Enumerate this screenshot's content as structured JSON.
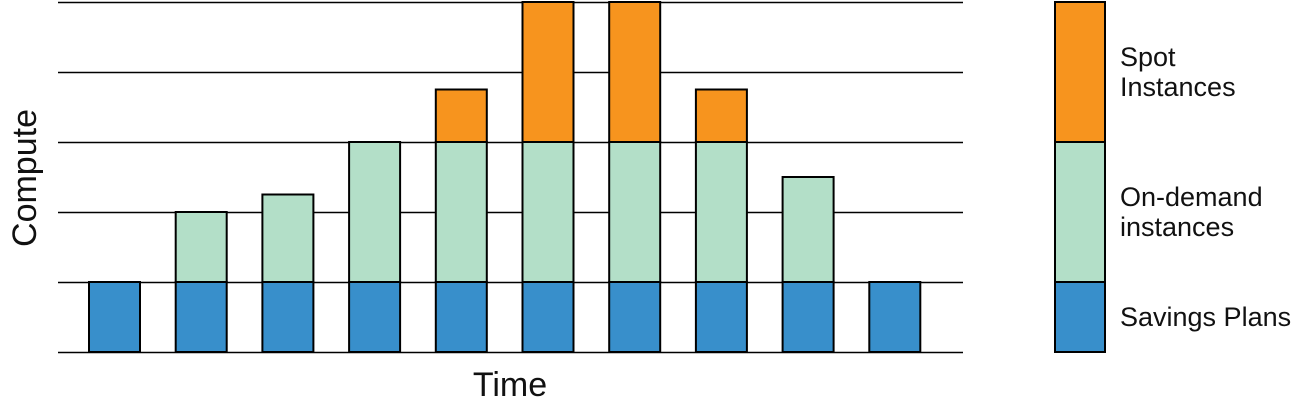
{
  "chart_data": {
    "type": "bar",
    "stacked": true,
    "categories": [
      "",
      "",
      "",
      "",
      "",
      "",
      "",
      "",
      "",
      ""
    ],
    "series": [
      {
        "name": "Savings Plans",
        "color": "#388fcb",
        "values": [
          1,
          1,
          1,
          1,
          1,
          1,
          1,
          1,
          1,
          1
        ]
      },
      {
        "name": "On-demand instances",
        "color": "#b3dfc8",
        "values": [
          0,
          1,
          1.25,
          2,
          2,
          2,
          2,
          2,
          1.5,
          0
        ]
      },
      {
        "name": "Spot Instances",
        "color": "#f7941e",
        "values": [
          0,
          0,
          0,
          0,
          0.75,
          2,
          2,
          0.75,
          0,
          0
        ]
      }
    ],
    "xlabel": "Time",
    "ylabel": "Compute",
    "ylim": [
      0,
      5
    ],
    "grid": true,
    "legend": {
      "placement": "right",
      "items": [
        {
          "label_lines": [
            "Spot",
            "Instances"
          ],
          "color": "#f7941e",
          "share": 2
        },
        {
          "label_lines": [
            "On-demand",
            "instances"
          ],
          "color": "#b3dfc8",
          "share": 2
        },
        {
          "label_lines": [
            "Savings Plans"
          ],
          "color": "#388fcb",
          "share": 1
        }
      ]
    }
  }
}
